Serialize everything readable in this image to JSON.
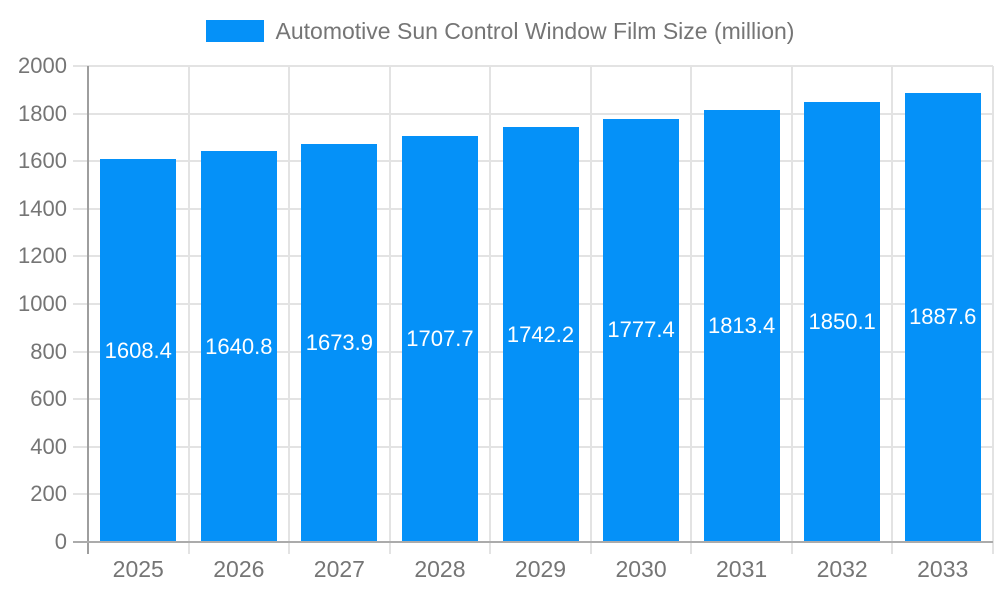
{
  "legend": {
    "label": "Automotive Sun Control Window Film Size (million)"
  },
  "chart_data": {
    "type": "bar",
    "title": "Automotive Sun Control Window Film Size (million)",
    "categories": [
      "2025",
      "2026",
      "2027",
      "2028",
      "2029",
      "2030",
      "2031",
      "2032",
      "2033"
    ],
    "values": [
      1608.4,
      1640.8,
      1673.9,
      1707.7,
      1742.2,
      1777.4,
      1813.4,
      1850.1,
      1887.6
    ],
    "value_labels": [
      "1608.4",
      "1640.8",
      "1673.9",
      "1707.7",
      "1742.2",
      "1777.4",
      "1813.4",
      "1850.1",
      "1887.6"
    ],
    "xlabel": "",
    "ylabel": "",
    "ylim": [
      0,
      2000
    ],
    "yticks": [
      0,
      200,
      400,
      600,
      800,
      1000,
      1200,
      1400,
      1600,
      1800,
      2000
    ],
    "grid": true,
    "legend_position": "top",
    "value_label_position": "inside-center",
    "colors": {
      "bar": "#0591f8",
      "grid": "#e3e3e3",
      "axis_y": "#9e9e9e",
      "axis_x": "#ababab",
      "tick_text": "#757575",
      "title_text": "#757575",
      "value_text": "#ffffff",
      "background": "#ffffff"
    }
  }
}
